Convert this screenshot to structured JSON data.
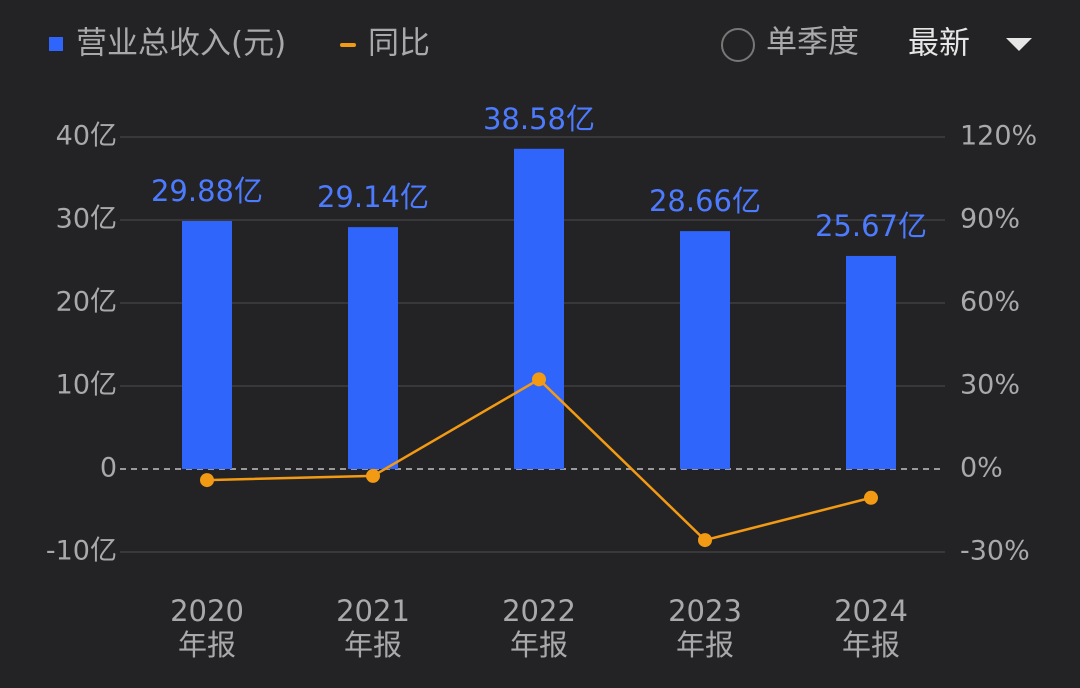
{
  "chart_data": {
    "type": "bar",
    "categories": [
      "2020年报",
      "2021年报",
      "2022年报",
      "2023年报",
      "2024年报"
    ],
    "series": [
      {
        "name": "营业总收入(元)",
        "color": "#3065fb",
        "values": [
          29.88,
          29.14,
          38.58,
          28.66,
          25.67
        ],
        "value_labels": [
          "29.88亿",
          "29.14亿",
          "38.58亿",
          "28.66亿",
          "25.67亿"
        ],
        "label_color": "#4d7bff"
      },
      {
        "name": "同比",
        "type": "line",
        "color": "#f39a14",
        "axis": "y2",
        "values": [
          -4,
          -2.5,
          32.4,
          -25.7,
          -10.4
        ]
      }
    ],
    "ylim": [
      -10,
      40
    ],
    "yticks": [
      {
        "value": -10,
        "label": "-10亿"
      },
      0,
      {
        "value": 10,
        "label": "10亿"
      },
      {
        "value": 20,
        "label": "20亿"
      },
      {
        "value": 30,
        "label": "30亿"
      },
      {
        "value": 40,
        "label": "40亿"
      }
    ],
    "y2lim": [
      -30,
      120
    ],
    "y2ticks": [
      {
        "value": -30,
        "label": "-30%"
      },
      {
        "value": 0,
        "label": "0%"
      },
      {
        "value": 30,
        "label": "30%"
      },
      {
        "value": 60,
        "label": "60%"
      },
      {
        "value": 90,
        "label": "90%"
      },
      {
        "value": 120,
        "label": "120%"
      }
    ],
    "grid": true
  },
  "controls": {
    "quarterly": "单季度",
    "period": "最新"
  }
}
